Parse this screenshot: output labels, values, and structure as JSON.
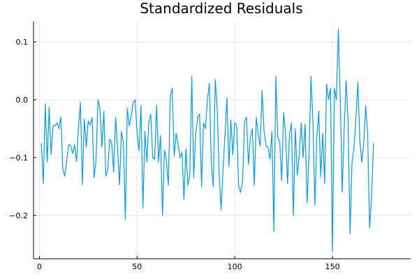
{
  "chart_data": {
    "type": "line",
    "title": "Standardized Residuals",
    "xlabel": "",
    "ylabel": "",
    "xlim": [
      -3,
      190
    ],
    "ylim": [
      -0.275,
      0.135
    ],
    "xticks": [
      0,
      50,
      100,
      150
    ],
    "yticks": [
      -0.2,
      -0.1,
      0.0,
      0.1
    ],
    "ytick_labels": [
      "−0.2",
      "−0.1",
      "0.0",
      "0.1"
    ],
    "grid": true,
    "legend": "none",
    "line_color": "#009AFA",
    "series": [
      {
        "values": [
          -0.075,
          -0.145,
          -0.007,
          -0.108,
          -0.013,
          -0.095,
          -0.045,
          -0.045,
          -0.04,
          -0.05,
          -0.03,
          -0.12,
          -0.132,
          -0.105,
          -0.078,
          -0.079,
          -0.093,
          -0.078,
          -0.107,
          -0.048,
          -0.005,
          -0.147,
          -0.033,
          -0.082,
          -0.037,
          -0.044,
          -0.031,
          -0.135,
          -0.105,
          0.0,
          -0.015,
          -0.082,
          -0.02,
          -0.132,
          -0.121,
          -0.068,
          -0.075,
          -0.125,
          -0.03,
          -0.083,
          -0.147,
          -0.055,
          -0.075,
          -0.207,
          -0.015,
          -0.045,
          -0.028,
          -0.005,
          0.0,
          -0.058,
          -0.088,
          -0.01,
          -0.187,
          -0.055,
          -0.108,
          -0.04,
          -0.025,
          -0.1,
          -0.103,
          -0.01,
          -0.108,
          -0.062,
          -0.2,
          -0.087,
          -0.105,
          -0.148,
          0.005,
          0.02,
          -0.098,
          -0.058,
          -0.078,
          -0.1,
          -0.091,
          -0.172,
          -0.085,
          -0.148,
          -0.13,
          0.04,
          -0.135,
          -0.06,
          -0.03,
          -0.025,
          -0.15,
          -0.04,
          -0.05,
          0.001,
          0.028,
          -0.11,
          -0.15,
          0.035,
          -0.015,
          -0.13,
          -0.19,
          -0.12,
          -0.06,
          0.003,
          -0.115,
          -0.035,
          -0.095,
          -0.04,
          -0.045,
          -0.15,
          -0.16,
          -0.141,
          -0.038,
          -0.03,
          -0.112,
          -0.065,
          -0.05,
          -0.148,
          -0.03,
          -0.06,
          -0.08,
          0.016,
          -0.055,
          -0.08,
          -0.082,
          -0.103,
          -0.055,
          -0.228,
          0.04,
          -0.065,
          -0.073,
          -0.14,
          -0.022,
          -0.058,
          -0.145,
          -0.06,
          -0.04,
          -0.2,
          -0.05,
          -0.13,
          -0.095,
          -0.04,
          -0.1,
          -0.042,
          -0.178,
          -0.095,
          0.04,
          -0.035,
          -0.182,
          -0.065,
          -0.02,
          -0.133,
          -0.058,
          -0.145,
          0.027,
          0.0,
          0.02,
          -0.262,
          0.02,
          0.0,
          0.122,
          0.001,
          -0.16,
          -0.05,
          0.033,
          -0.04,
          -0.232,
          -0.108,
          -0.085,
          -0.032,
          0.03,
          -0.07,
          -0.108,
          -0.075,
          -0.01,
          -0.06,
          -0.222,
          -0.17,
          -0.075
        ]
      }
    ]
  }
}
